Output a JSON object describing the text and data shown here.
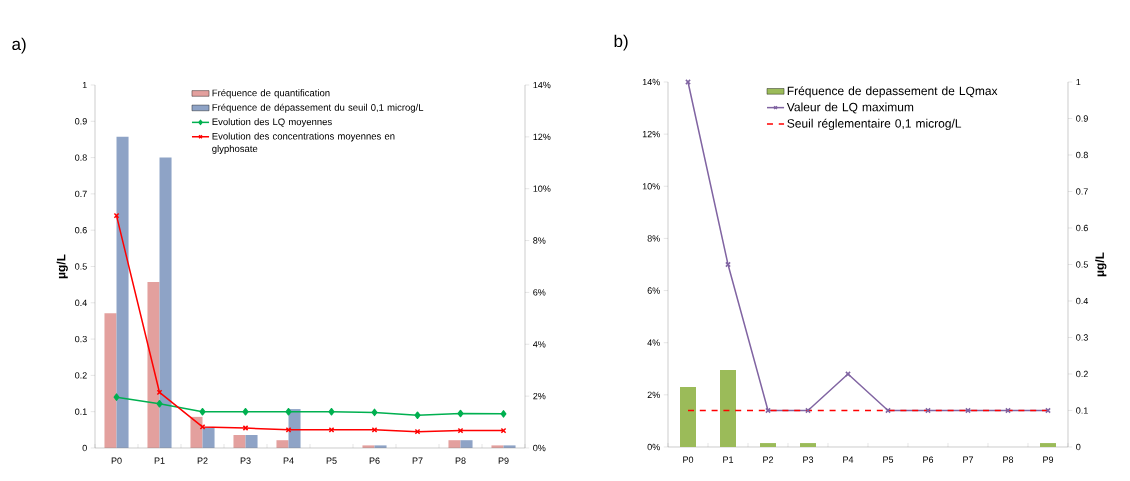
{
  "chart_data": [
    {
      "type": "bar",
      "title": "a)",
      "ylabel": "µg/L",
      "categories": [
        "P0",
        "P1",
        "P2",
        "P3",
        "P4",
        "P5",
        "P6",
        "P7",
        "P8",
        "P9"
      ],
      "series": [
        {
          "name": "Fréquence de quantification",
          "axis": "y2",
          "color": "#e3a09e",
          "values": [
            5.2,
            6.4,
            1.2,
            0.5,
            0.3,
            0,
            0.1,
            0,
            0.3,
            0.1
          ]
        },
        {
          "name": "Fréquence de dépassement du seuil 0,1 microg/L",
          "axis": "y2",
          "color": "#8ea3c6",
          "values": [
            12.0,
            11.2,
            0.8,
            0.5,
            1.5,
            0,
            0.1,
            0,
            0.3,
            0.1
          ]
        },
        {
          "name": "Evolution des LQ moyennes",
          "type": "line",
          "axis": "y",
          "color": "#00b050",
          "marker": "diamond",
          "values": [
            0.14,
            0.122,
            0.1,
            0.1,
            0.1,
            0.1,
            0.098,
            0.09,
            0.095,
            0.094
          ]
        },
        {
          "name": "Evolution des concentrations moyennes en glyphosate",
          "type": "line",
          "axis": "y",
          "color": "#ff0000",
          "marker": "cross",
          "values": [
            0.64,
            0.153,
            0.058,
            0.055,
            0.05,
            0.05,
            0.05,
            0.045,
            0.048,
            0.048
          ]
        }
      ],
      "ylim": [
        0,
        1
      ],
      "yticks": [
        0,
        0.1,
        0.2,
        0.3,
        0.4,
        0.5,
        0.6,
        0.7,
        0.8,
        0.9,
        1
      ],
      "y2lim": [
        0,
        14
      ],
      "y2ticks": [
        {
          "value": 0,
          "label": "0%"
        },
        {
          "value": 2,
          "label": "2%"
        },
        {
          "value": 4,
          "label": "4%"
        },
        {
          "value": 6,
          "label": "6%"
        },
        {
          "value": 8,
          "label": "8%"
        },
        {
          "value": 10,
          "label": "10%"
        },
        {
          "value": 12,
          "label": "12%"
        },
        {
          "value": 14,
          "label": "14%"
        }
      ],
      "legend": "top"
    },
    {
      "type": "bar",
      "title": "b)",
      "y2label": "µg/L",
      "categories": [
        "P0",
        "P1",
        "P2",
        "P3",
        "P4",
        "P5",
        "P6",
        "P7",
        "P8",
        "P9"
      ],
      "series": [
        {
          "name": "Fréquence de depassement de LQmax",
          "axis": "y",
          "color": "#9bbb59",
          "values": [
            2.3,
            2.95,
            0.15,
            0.15,
            0,
            0,
            0,
            0,
            0,
            0.15
          ]
        },
        {
          "name": "Valeur de LQ maximum",
          "type": "line",
          "axis": "y2",
          "color": "#8064a2",
          "marker": "cross",
          "values": [
            1,
            0.5,
            0.1,
            0.1,
            0.2,
            0.1,
            0.1,
            0.1,
            0.1,
            0.1
          ]
        },
        {
          "name": "Seuil réglementaire 0,1 microg/L",
          "type": "line",
          "axis": "y2",
          "color": "#ff0000",
          "line_style": "dashed",
          "values": [
            0.1,
            0.1,
            0.1,
            0.1,
            0.1,
            0.1,
            0.1,
            0.1,
            0.1,
            0.1
          ]
        }
      ],
      "ylim": [
        0,
        14
      ],
      "yticks": [
        {
          "value": 0,
          "label": "0%"
        },
        {
          "value": 2,
          "label": "2%"
        },
        {
          "value": 4,
          "label": "4%"
        },
        {
          "value": 6,
          "label": "6%"
        },
        {
          "value": 8,
          "label": "8%"
        },
        {
          "value": 10,
          "label": "10%"
        },
        {
          "value": 12,
          "label": "12%"
        },
        {
          "value": 14,
          "label": "14%"
        }
      ],
      "y2lim": [
        0,
        1
      ],
      "y2ticks": [
        0,
        0.1,
        0.2,
        0.3,
        0.4,
        0.5,
        0.6,
        0.7,
        0.8,
        0.9,
        1
      ],
      "legend": "top right"
    }
  ]
}
